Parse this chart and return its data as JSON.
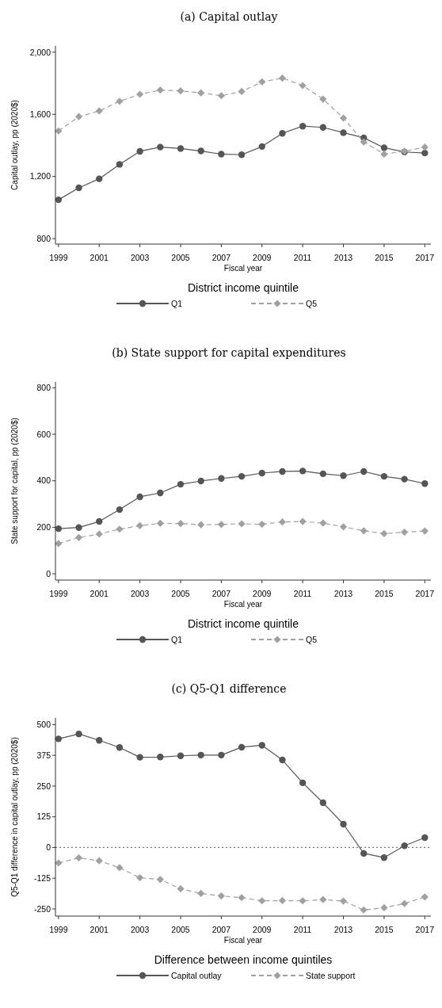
{
  "chart_data": [
    {
      "type": "line",
      "title": "(a) Capital outlay",
      "xlabel": "Fiscal year",
      "ylabel": "Capital outlay, pp (2020$)",
      "legend_title": "District income quintile",
      "legend": "bottom",
      "grid": false,
      "x": [
        1999,
        2000,
        2001,
        2002,
        2003,
        2004,
        2005,
        2006,
        2007,
        2008,
        2009,
        2010,
        2011,
        2012,
        2013,
        2014,
        2015,
        2016,
        2017
      ],
      "xlim": [
        1998.85,
        2017.3
      ],
      "xticks": [
        1999,
        2001,
        2003,
        2005,
        2007,
        2009,
        2011,
        2013,
        2015,
        2017
      ],
      "ylim": [
        765,
        2040
      ],
      "yticks": [
        {
          "value": 800,
          "label": "800"
        },
        {
          "value": 1200,
          "label": "1,200"
        },
        {
          "value": 1600,
          "label": "1,600"
        },
        {
          "value": 2000,
          "label": "2,000"
        }
      ],
      "series": [
        {
          "name": "Q1",
          "color": "#555555",
          "marker": "circle",
          "line_style": "solid",
          "values": [
            1050,
            1127,
            1185,
            1278,
            1362,
            1389,
            1380,
            1364,
            1344,
            1340,
            1393,
            1478,
            1524,
            1516,
            1482,
            1449,
            1385,
            1358,
            1351
          ]
        },
        {
          "name": "Q5",
          "color": "#a0a0a0",
          "marker": "diamond",
          "line_style": "dashed",
          "values": [
            1493,
            1585,
            1622,
            1684,
            1729,
            1756,
            1751,
            1738,
            1720,
            1747,
            1809,
            1833,
            1785,
            1698,
            1576,
            1422,
            1344,
            1362,
            1389
          ]
        }
      ]
    },
    {
      "type": "line",
      "title": "(b) State support for capital expenditures",
      "xlabel": "Fiscal year",
      "ylabel": "State support for capital, pp (2020$)",
      "legend_title": "District income quintile",
      "legend": "bottom",
      "grid": false,
      "x": [
        1999,
        2000,
        2001,
        2002,
        2003,
        2004,
        2005,
        2006,
        2007,
        2008,
        2009,
        2010,
        2011,
        2012,
        2013,
        2014,
        2015,
        2016,
        2017
      ],
      "xlim": [
        1998.85,
        2017.3
      ],
      "xticks": [
        1999,
        2001,
        2003,
        2005,
        2007,
        2009,
        2011,
        2013,
        2015,
        2017
      ],
      "ylim": [
        -27,
        825
      ],
      "yticks": [
        0,
        200,
        400,
        600,
        800
      ],
      "series": [
        {
          "name": "Q1",
          "color": "#555555",
          "marker": "circle",
          "line_style": "solid",
          "values": [
            194,
            199,
            225,
            276,
            331,
            348,
            385,
            399,
            410,
            419,
            433,
            440,
            442,
            430,
            422,
            440,
            419,
            407,
            388
          ]
        },
        {
          "name": "Q5",
          "color": "#a0a0a0",
          "marker": "diamond",
          "line_style": "dashed",
          "values": [
            130,
            156,
            171,
            192,
            207,
            217,
            216,
            211,
            212,
            215,
            213,
            223,
            225,
            218,
            202,
            185,
            173,
            179,
            184
          ]
        }
      ]
    },
    {
      "type": "line",
      "title": "(c) Q5-Q1 difference",
      "xlabel": "Fiscal year",
      "ylabel": "Q5-Q1 difference in capital outlay, pp (2020$)",
      "legend_title": "Difference between income quintiles",
      "legend": "bottom",
      "grid": false,
      "x": [
        1999,
        2000,
        2001,
        2002,
        2003,
        2004,
        2005,
        2006,
        2007,
        2008,
        2009,
        2010,
        2011,
        2012,
        2013,
        2014,
        2015,
        2016,
        2017
      ],
      "xlim": [
        1998.85,
        2017.3
      ],
      "xticks": [
        1999,
        2001,
        2003,
        2005,
        2007,
        2009,
        2011,
        2013,
        2015,
        2017
      ],
      "ylim": [
        -279,
        527
      ],
      "yticks": [
        -250,
        -125,
        0,
        125,
        250,
        375,
        500
      ],
      "ref_lines": [
        {
          "axis": "y",
          "value": 0,
          "color": "#777777",
          "line_style": "dotted"
        }
      ],
      "series": [
        {
          "name": "Capital outlay",
          "color": "#555555",
          "marker": "circle",
          "line_style": "solid",
          "values": [
            442,
            462,
            436,
            407,
            367,
            368,
            373,
            376,
            376,
            408,
            416,
            356,
            263,
            182,
            95,
            -24,
            -41,
            7,
            40
          ]
        },
        {
          "name": "State support",
          "color": "#a0a0a0",
          "marker": "diamond",
          "line_style": "dashed",
          "values": [
            -63,
            -42,
            -54,
            -82,
            -123,
            -130,
            -168,
            -187,
            -197,
            -204,
            -217,
            -216,
            -217,
            -212,
            -218,
            -254,
            -245,
            -228,
            -201
          ]
        }
      ]
    }
  ]
}
